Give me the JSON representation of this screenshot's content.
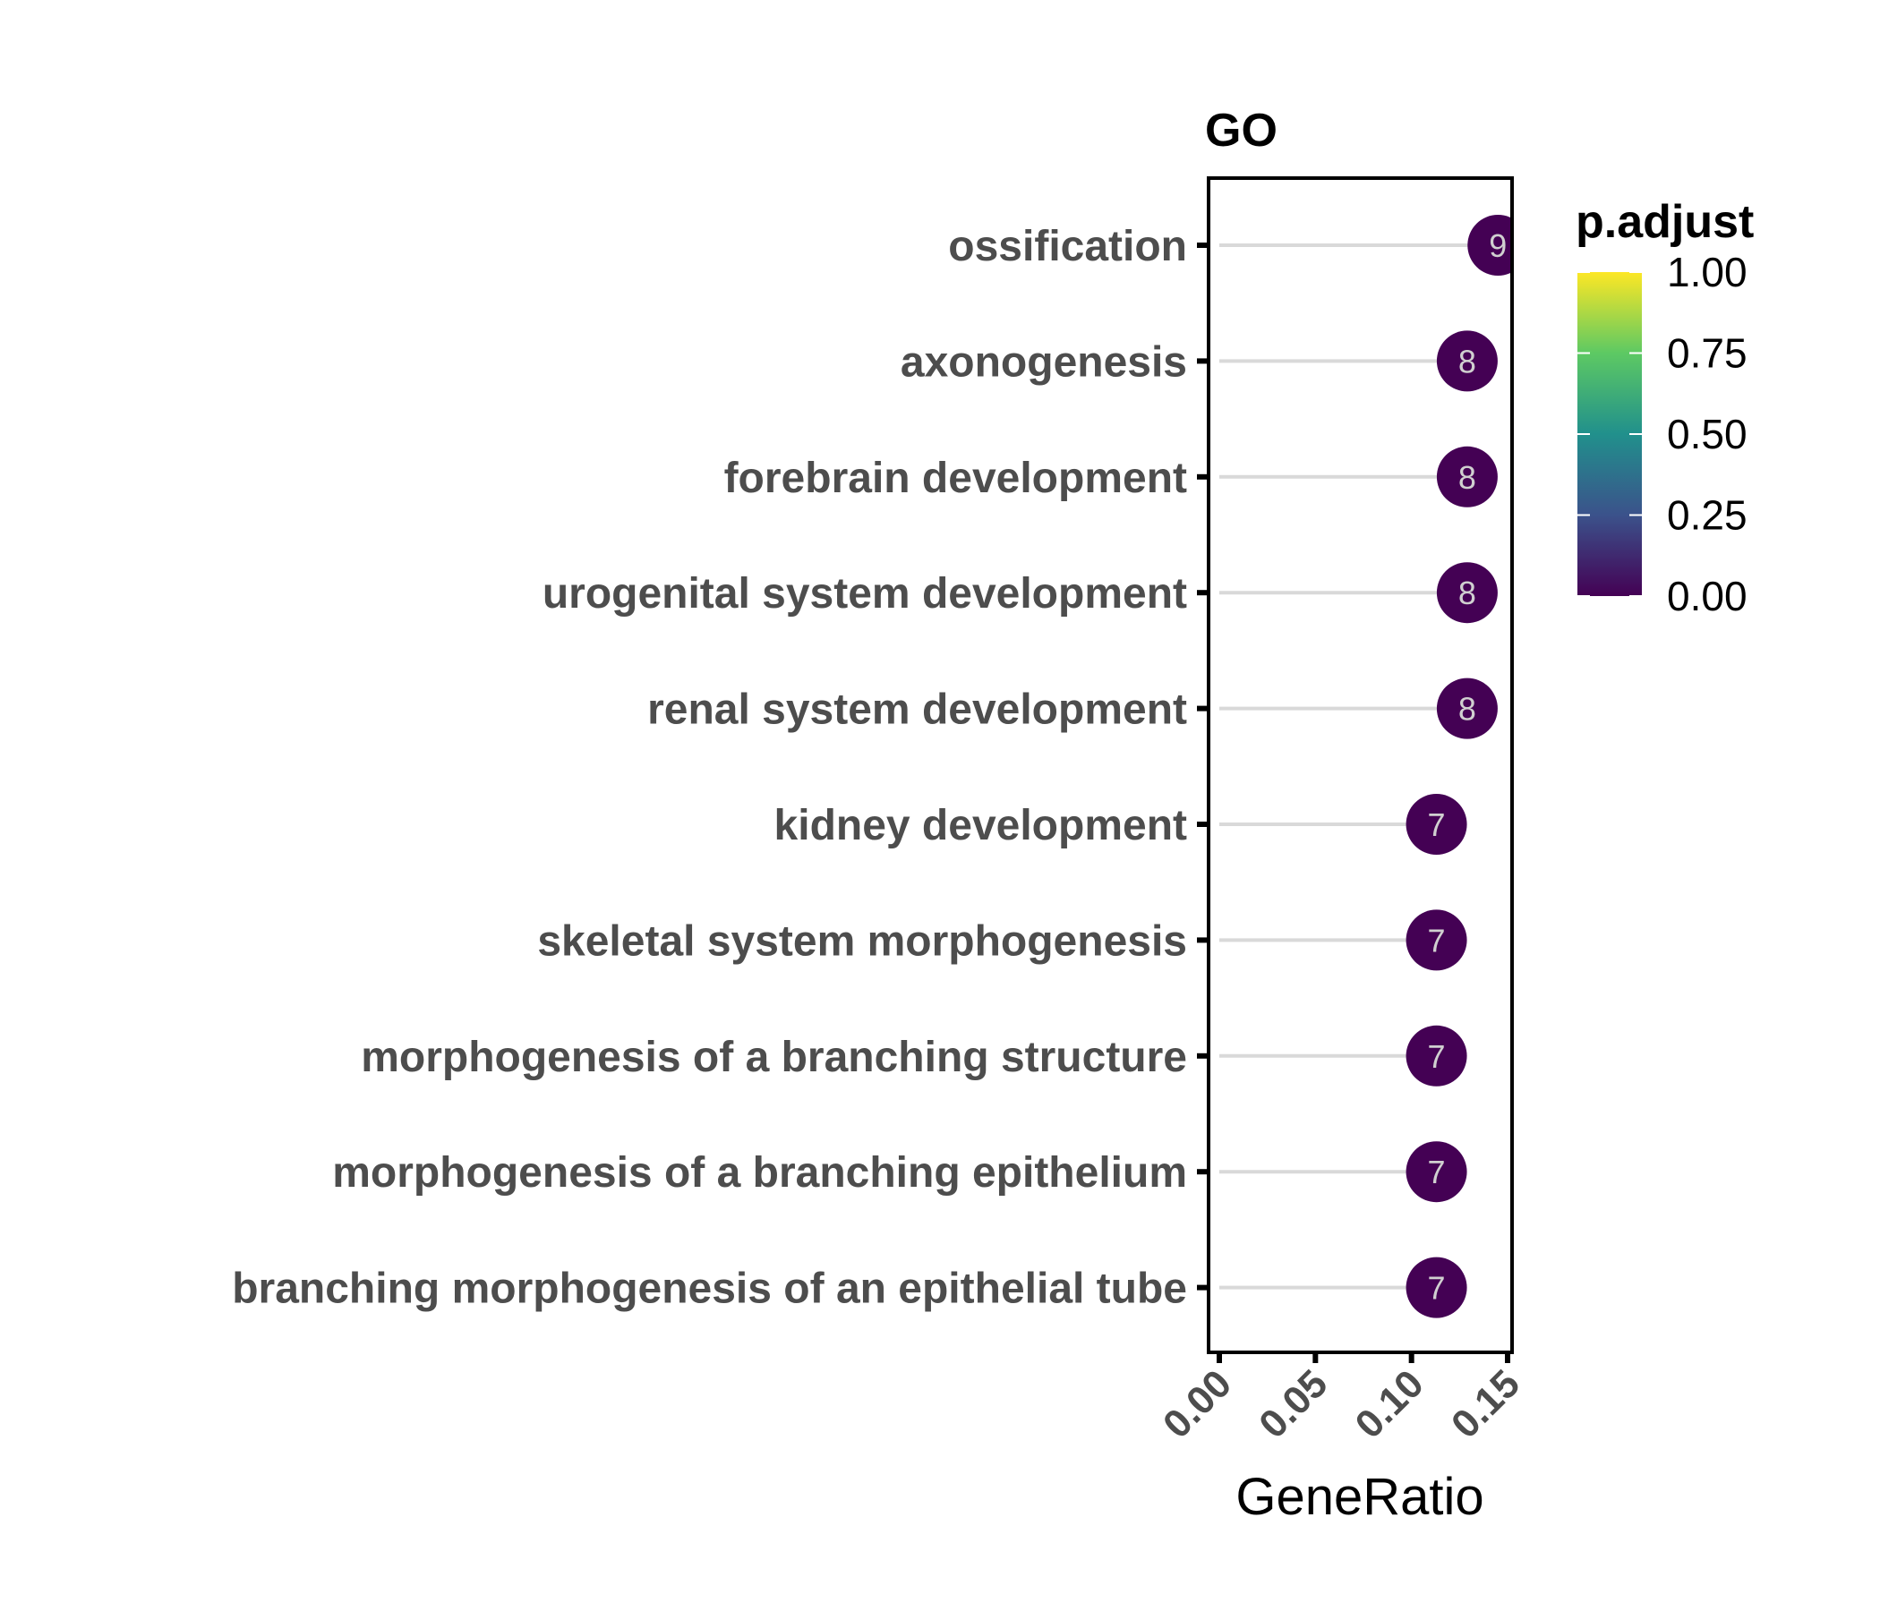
{
  "chart_data": {
    "type": "lollipop",
    "title": "GO",
    "xlabel": "GeneRatio",
    "ylabel": "",
    "xlim": [
      0,
      0.15
    ],
    "x_ticks": [
      "0.00",
      "0.05",
      "0.10",
      "0.15"
    ],
    "grid": false,
    "categories": [
      "ossification",
      "axonogenesis",
      "forebrain development",
      "urogenital system development",
      "renal system development",
      "kidney development",
      "skeletal system morphogenesis",
      "morphogenesis of a branching structure",
      "morphogenesis of a branching epithelium",
      "branching morphogenesis of an epithelial tube"
    ],
    "values": [
      0.145,
      0.129,
      0.129,
      0.129,
      0.129,
      0.113,
      0.113,
      0.113,
      0.113,
      0.113
    ],
    "counts": [
      9,
      8,
      8,
      8,
      8,
      7,
      7,
      7,
      7,
      7
    ],
    "p_adjust": [
      0.0,
      0.0,
      0.0,
      0.0,
      0.0,
      0.0,
      0.0,
      0.0,
      0.0,
      0.0
    ],
    "legend": {
      "title": "p.adjust",
      "position": "right",
      "ticks": [
        "0.00",
        "0.25",
        "0.50",
        "0.75",
        "1.00"
      ],
      "colors": [
        "#440154",
        "#3b528b",
        "#21908c",
        "#5dc963",
        "#fde725"
      ]
    },
    "colors": {
      "stem": "#d9d9d9",
      "label_text": "#4d4d4d",
      "count_text": "#d0d0d0"
    }
  }
}
